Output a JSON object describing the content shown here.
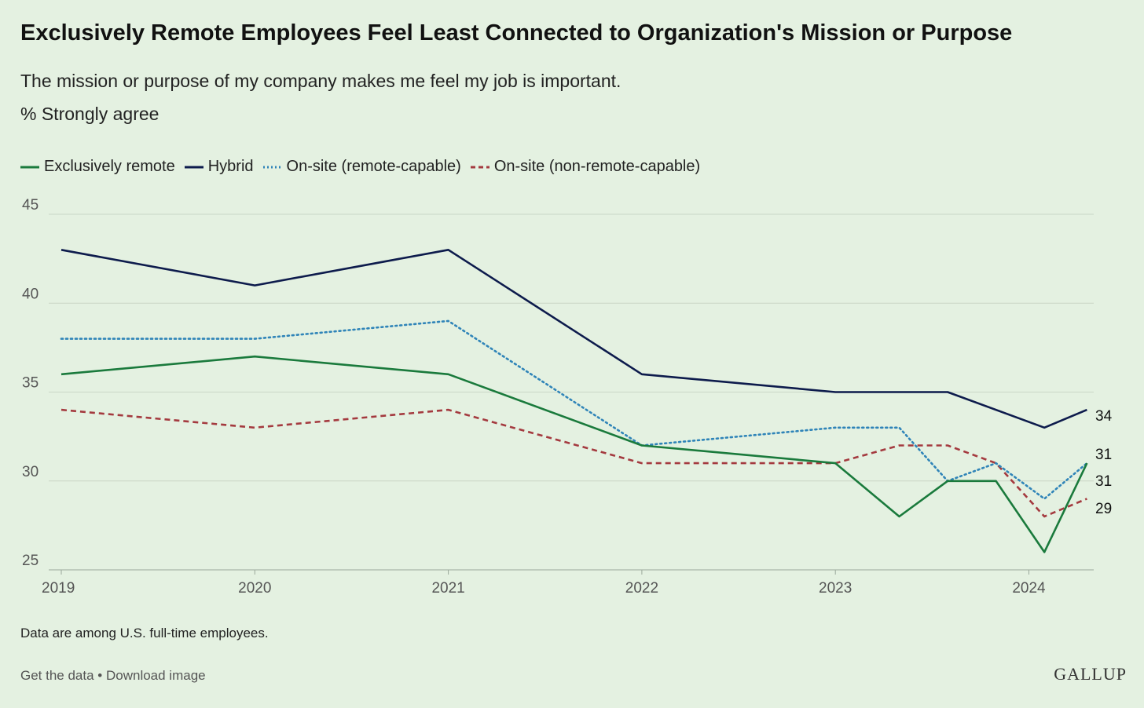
{
  "title": "Exclusively Remote Employees Feel Least Connected to Organization's Mission or Purpose",
  "subtitle": "The mission or purpose of my company makes me feel my job is important.",
  "unit_label": "% Strongly agree",
  "note": "Data are among U.S. full-time employees.",
  "footer": {
    "get_data": "Get the data",
    "separator": " • ",
    "download": "Download image"
  },
  "brand": "GALLUP",
  "chart_data": {
    "type": "line",
    "ylim": [
      25,
      45
    ],
    "yticks": [
      25,
      30,
      35,
      40,
      45
    ],
    "xlim": [
      2019,
      2024.35
    ],
    "xticks": [
      2019,
      2020,
      2021,
      2022,
      2023,
      2024
    ],
    "grid": true,
    "legend_position": "top-left",
    "series": [
      {
        "name": "Exclusively remote",
        "color": "#1a7a3c",
        "style": "solid",
        "end_label": "31",
        "points": [
          [
            2019,
            36
          ],
          [
            2020,
            37
          ],
          [
            2021,
            36
          ],
          [
            2022,
            32
          ],
          [
            2023,
            31
          ],
          [
            2023.33,
            28
          ],
          [
            2023.58,
            30
          ],
          [
            2023.83,
            30
          ],
          [
            2024.08,
            26
          ],
          [
            2024.3,
            31
          ]
        ]
      },
      {
        "name": "Hybrid",
        "color": "#0d1b4c",
        "style": "solid",
        "end_label": "34",
        "points": [
          [
            2019,
            43
          ],
          [
            2020,
            41
          ],
          [
            2021,
            43
          ],
          [
            2022,
            36
          ],
          [
            2023,
            35
          ],
          [
            2023.58,
            35
          ],
          [
            2024.08,
            33
          ],
          [
            2024.3,
            34
          ]
        ]
      },
      {
        "name": "On-site (remote-capable)",
        "color": "#2f84b8",
        "style": "dotted",
        "end_label": "31",
        "points": [
          [
            2019,
            38
          ],
          [
            2020,
            38
          ],
          [
            2021,
            39
          ],
          [
            2022,
            32
          ],
          [
            2023,
            33
          ],
          [
            2023.33,
            33
          ],
          [
            2023.58,
            30
          ],
          [
            2023.83,
            31
          ],
          [
            2024.08,
            29
          ],
          [
            2024.3,
            31
          ]
        ]
      },
      {
        "name": "On-site (non-remote-capable)",
        "color": "#a43a3f",
        "style": "dashed",
        "end_label": "29",
        "points": [
          [
            2019,
            34
          ],
          [
            2020,
            33
          ],
          [
            2021,
            34
          ],
          [
            2022,
            31
          ],
          [
            2023,
            31
          ],
          [
            2023.33,
            32
          ],
          [
            2023.58,
            32
          ],
          [
            2023.83,
            31
          ],
          [
            2024.08,
            28
          ],
          [
            2024.3,
            29
          ]
        ]
      }
    ]
  }
}
